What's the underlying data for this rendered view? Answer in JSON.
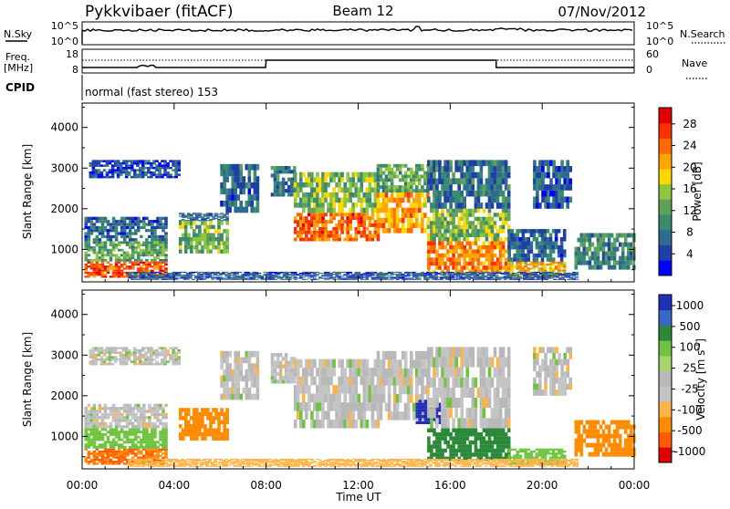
{
  "header": {
    "title": "Pykkvibaer (fitACF)",
    "beam": "Beam 12",
    "date": "07/Nov/2012"
  },
  "strip": {
    "nsky_label": "N.Sky",
    "nsearch_label": "N.Search",
    "freq_label_line1": "Freq.",
    "freq_label_line2": "[MHz]",
    "nave_label": "Nave",
    "cpid_label": "CPID",
    "cpid_text": "normal (fast stereo) 153",
    "noise_left_ticks": [
      "10^5",
      "10^0"
    ],
    "noise_right_ticks": [
      "10^5",
      "10^0"
    ],
    "freq_ticks": [
      "18",
      "8"
    ],
    "nave_ticks": [
      "60",
      "0"
    ]
  },
  "colors": {
    "power": [
      "#0000ff",
      "#1f3fa8",
      "#2e6b8f",
      "#3a8a70",
      "#5fa05a",
      "#8ec63f",
      "#ffd700",
      "#ffa500",
      "#ff6a00",
      "#ff3000",
      "#e00000"
    ],
    "velocity": [
      "#2030b8",
      "#3b68c8",
      "#2a8a3a",
      "#6ec43e",
      "#a6d46a",
      "#b8b8b8",
      "#c4c4c4",
      "#ffb347",
      "#ff8c00",
      "#ff5a00",
      "#e00000"
    ]
  },
  "chart_data": [
    {
      "type": "heatmap",
      "panel": "power",
      "ylabel": "Slant Range [km]",
      "yticks": [
        "1000",
        "2000",
        "3000",
        "4000"
      ],
      "ylim": [
        200,
        4600
      ],
      "xlim": [
        0,
        24
      ],
      "colorbar_label": "Power [dB]",
      "colorbar_ticks": [
        "4",
        "8",
        "12",
        "16",
        "20",
        "24",
        "28"
      ],
      "clim": [
        0,
        31
      ],
      "regions": [
        {
          "t0": 0.1,
          "t1": 3.7,
          "r0": 300,
          "r1": 700,
          "v": 27
        },
        {
          "t0": 0.1,
          "t1": 3.7,
          "r0": 700,
          "r1": 1200,
          "v": 12
        },
        {
          "t0": 0.1,
          "t1": 3.7,
          "r0": 1200,
          "r1": 1800,
          "v": 6
        },
        {
          "t0": 0.3,
          "t1": 4.2,
          "r0": 2750,
          "r1": 3200,
          "v": 4
        },
        {
          "t0": 4.2,
          "t1": 6.3,
          "r0": 900,
          "r1": 1700,
          "v": 13
        },
        {
          "t0": 4.2,
          "t1": 6.3,
          "r0": 1700,
          "r1": 1900,
          "v": 6
        },
        {
          "t0": 6.0,
          "t1": 7.6,
          "r0": 1900,
          "r1": 3100,
          "v": 6
        },
        {
          "t0": 8.2,
          "t1": 9.2,
          "r0": 2300,
          "r1": 3050,
          "v": 8
        },
        {
          "t0": 9.2,
          "t1": 12.8,
          "r0": 1200,
          "r1": 1900,
          "v": 25
        },
        {
          "t0": 9.2,
          "t1": 12.8,
          "r0": 1900,
          "r1": 2900,
          "v": 14
        },
        {
          "t0": 12.8,
          "t1": 15.0,
          "r0": 1400,
          "r1": 2400,
          "v": 22
        },
        {
          "t0": 12.8,
          "t1": 15.0,
          "r0": 2400,
          "r1": 3100,
          "v": 12
        },
        {
          "t0": 15.0,
          "t1": 18.5,
          "r0": 400,
          "r1": 1200,
          "v": 24
        },
        {
          "t0": 15.0,
          "t1": 18.5,
          "r0": 1200,
          "r1": 2000,
          "v": 14
        },
        {
          "t0": 15.0,
          "t1": 18.5,
          "r0": 2000,
          "r1": 3200,
          "v": 7
        },
        {
          "t0": 18.5,
          "t1": 21.0,
          "r0": 300,
          "r1": 700,
          "v": 20
        },
        {
          "t0": 18.5,
          "t1": 21.0,
          "r0": 700,
          "r1": 1500,
          "v": 6
        },
        {
          "t0": 19.6,
          "t1": 21.2,
          "r0": 2000,
          "r1": 3200,
          "v": 5
        },
        {
          "t0": 21.4,
          "t1": 24.0,
          "r0": 500,
          "r1": 1400,
          "v": 9
        },
        {
          "t0": 2.0,
          "t1": 21.5,
          "r0": 250,
          "r1": 450,
          "v": 5
        }
      ]
    },
    {
      "type": "heatmap",
      "panel": "velocity",
      "ylabel": "Slant Range [km]",
      "yticks": [
        "1000",
        "2000",
        "3000",
        "4000"
      ],
      "ylim": [
        200,
        4600
      ],
      "xlim": [
        0,
        24
      ],
      "xlabel": "Time UT",
      "xticks": [
        "00:00",
        "04:00",
        "08:00",
        "12:00",
        "16:00",
        "20:00",
        "00:00"
      ],
      "colorbar_label": "Velocity [m s^-1]",
      "colorbar_ticks": [
        "1000",
        "500",
        "100",
        "25",
        "-25",
        "-100",
        "-500",
        "-1000"
      ],
      "regions": [
        {
          "t0": 0.1,
          "t1": 3.7,
          "r0": 300,
          "r1": 700,
          "v": -300
        },
        {
          "t0": 0.1,
          "t1": 3.7,
          "r0": 700,
          "r1": 1200,
          "v": 60
        },
        {
          "t0": 0.1,
          "t1": 3.7,
          "r0": 1200,
          "r1": 1800,
          "v": 0
        },
        {
          "t0": 0.3,
          "t1": 4.2,
          "r0": 2750,
          "r1": 3200,
          "v": 0
        },
        {
          "t0": 4.2,
          "t1": 6.3,
          "r0": 900,
          "r1": 1700,
          "v": -150
        },
        {
          "t0": 6.0,
          "t1": 7.6,
          "r0": 1900,
          "r1": 3100,
          "v": 0
        },
        {
          "t0": 8.2,
          "t1": 9.2,
          "r0": 2300,
          "r1": 3050,
          "v": 0
        },
        {
          "t0": 9.2,
          "t1": 12.8,
          "r0": 1200,
          "r1": 2900,
          "v": 0
        },
        {
          "t0": 12.8,
          "t1": 15.0,
          "r0": 1400,
          "r1": 3100,
          "v": 0
        },
        {
          "t0": 14.5,
          "t1": 15.5,
          "r0": 1300,
          "r1": 1900,
          "v": 900
        },
        {
          "t0": 15.0,
          "t1": 18.5,
          "r0": 400,
          "r1": 1200,
          "v": 200
        },
        {
          "t0": 15.0,
          "t1": 18.5,
          "r0": 1200,
          "r1": 3200,
          "v": 0
        },
        {
          "t0": 18.5,
          "t1": 21.0,
          "r0": 300,
          "r1": 700,
          "v": 60
        },
        {
          "t0": 19.6,
          "t1": 21.2,
          "r0": 2000,
          "r1": 3200,
          "v": 0
        },
        {
          "t0": 21.4,
          "t1": 24.0,
          "r0": 500,
          "r1": 1400,
          "v": -200
        },
        {
          "t0": 2.0,
          "t1": 21.5,
          "r0": 250,
          "r1": 450,
          "v": -60
        }
      ]
    }
  ]
}
